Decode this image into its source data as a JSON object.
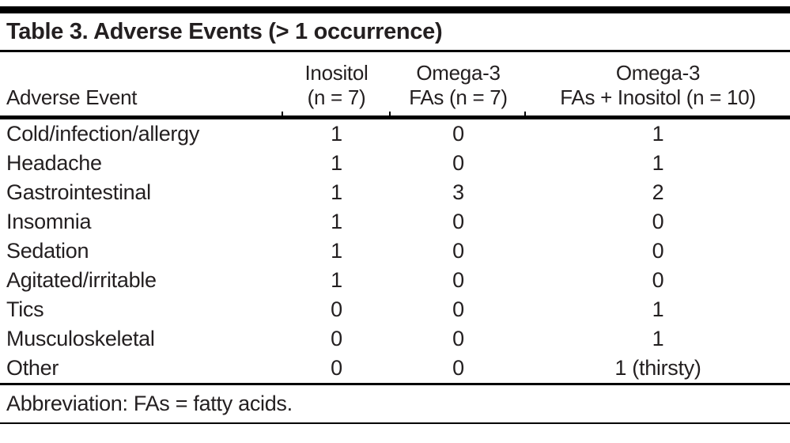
{
  "title": "Table 3. Adverse Events (> 1 occurrence)",
  "table": {
    "columns": [
      {
        "line1": "",
        "line2": "Adverse Event"
      },
      {
        "line1": "Inositol",
        "line2": "(n = 7)"
      },
      {
        "line1": "Omega-3",
        "line2": "FAs (n = 7)"
      },
      {
        "line1": "Omega-3",
        "line2": "FAs + Inositol (n = 10)"
      }
    ],
    "rows": [
      {
        "event": "Cold/infection/allergy",
        "values": [
          "1",
          "0",
          "1"
        ]
      },
      {
        "event": "Headache",
        "values": [
          "1",
          "0",
          "1"
        ]
      },
      {
        "event": "Gastrointestinal",
        "values": [
          "1",
          "3",
          "2"
        ]
      },
      {
        "event": "Insomnia",
        "values": [
          "1",
          "0",
          "0"
        ]
      },
      {
        "event": "Sedation",
        "values": [
          "1",
          "0",
          "0"
        ]
      },
      {
        "event": "Agitated/irritable",
        "values": [
          "1",
          "0",
          "0"
        ]
      },
      {
        "event": "Tics",
        "values": [
          "0",
          "0",
          "1"
        ]
      },
      {
        "event": "Musculoskeletal",
        "values": [
          "0",
          "0",
          "1"
        ]
      },
      {
        "event": "Other",
        "values": [
          "0",
          "0",
          "1 (thirsty)"
        ]
      }
    ]
  },
  "footnote": "Abbreviation: FAs = fatty acids.",
  "colors": {
    "text": "#231f20",
    "rule": "#000000",
    "background": "#ffffff"
  }
}
